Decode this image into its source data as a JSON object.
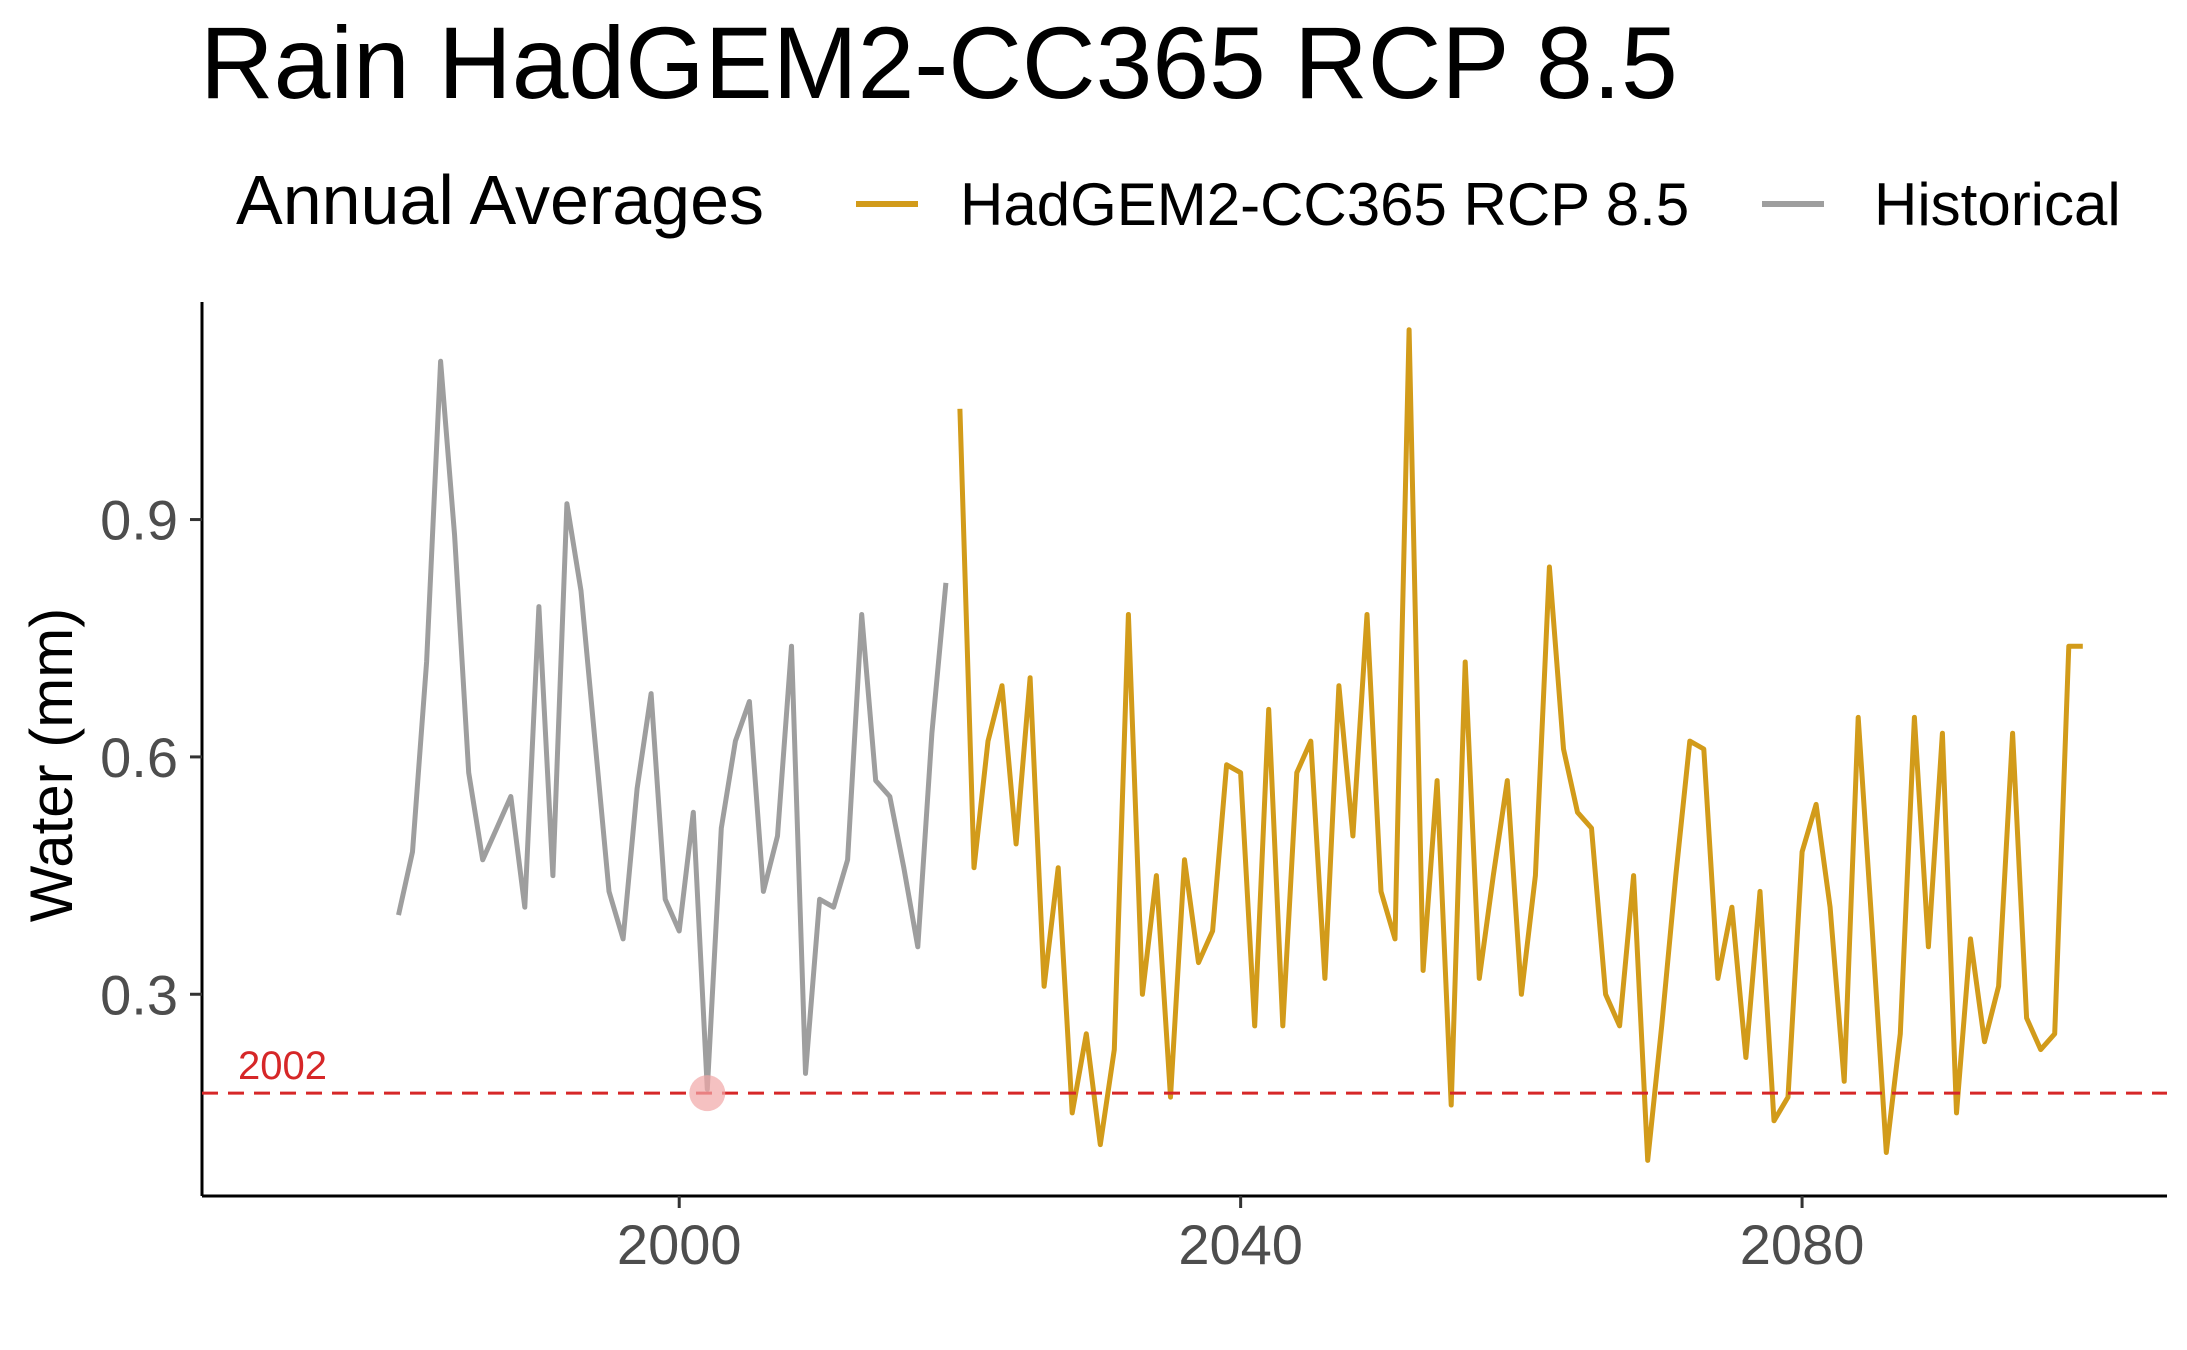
{
  "chart_data": {
    "type": "line",
    "title": "Rain HadGEM2-CC365 RCP 8.5",
    "xlabel": "",
    "ylabel": "Water (mm)",
    "xlim": [
      1966,
      2106
    ],
    "ylim": [
      0.045,
      1.175
    ],
    "x_ticks": [
      2000,
      2040,
      2080
    ],
    "y_ticks": [
      0.3,
      0.6,
      0.9
    ],
    "y_tick_labels": [
      "0.3",
      "0.6",
      "0.9"
    ],
    "grid": false,
    "legend": {
      "title": "Annual Averages",
      "position": "top",
      "entries": [
        "HadGEM2-CC365 RCP 8.5",
        "Historical"
      ]
    },
    "series": [
      {
        "name": "Historical",
        "color": "#9e9e9e",
        "x": [
          1980,
          1981,
          1982,
          1983,
          1984,
          1985,
          1986,
          1987,
          1988,
          1989,
          1990,
          1991,
          1992,
          1993,
          1994,
          1995,
          1996,
          1997,
          1998,
          1999,
          2000,
          2001,
          2002,
          2003,
          2004,
          2005,
          2006,
          2007,
          2008,
          2009,
          2010,
          2011,
          2012,
          2013,
          2014,
          2015,
          2016,
          2017,
          2018,
          2019
        ],
        "y": [
          0.4,
          0.48,
          0.72,
          1.1,
          0.88,
          0.58,
          0.47,
          0.51,
          0.55,
          0.41,
          0.79,
          0.45,
          0.92,
          0.81,
          0.62,
          0.43,
          0.37,
          0.56,
          0.68,
          0.42,
          0.38,
          0.53,
          0.18,
          0.51,
          0.62,
          0.67,
          0.43,
          0.5,
          0.74,
          0.2,
          0.42,
          0.41,
          0.47,
          0.78,
          0.57,
          0.55,
          0.46,
          0.36,
          0.63,
          0.82
        ]
      },
      {
        "name": "HadGEM2-CC365 RCP 8.5",
        "color": "#d29b1a",
        "x": [
          2020,
          2021,
          2022,
          2023,
          2024,
          2025,
          2026,
          2027,
          2028,
          2029,
          2030,
          2031,
          2032,
          2033,
          2034,
          2035,
          2036,
          2037,
          2038,
          2039,
          2040,
          2041,
          2042,
          2043,
          2044,
          2045,
          2046,
          2047,
          2048,
          2049,
          2050,
          2051,
          2052,
          2053,
          2054,
          2055,
          2056,
          2057,
          2058,
          2059,
          2060,
          2061,
          2062,
          2063,
          2064,
          2065,
          2066,
          2067,
          2068,
          2069,
          2070,
          2071,
          2072,
          2073,
          2074,
          2075,
          2076,
          2077,
          2078,
          2079,
          2080,
          2081,
          2082,
          2083,
          2084,
          2085,
          2086,
          2087,
          2088,
          2089,
          2090,
          2091,
          2092,
          2093,
          2094,
          2095,
          2096,
          2097,
          2098,
          2099,
          2100
        ],
        "y": [
          1.04,
          0.46,
          0.62,
          0.69,
          0.49,
          0.7,
          0.31,
          0.46,
          0.15,
          0.25,
          0.11,
          0.23,
          0.78,
          0.3,
          0.45,
          0.17,
          0.47,
          0.34,
          0.38,
          0.59,
          0.58,
          0.26,
          0.66,
          0.26,
          0.58,
          0.62,
          0.32,
          0.69,
          0.5,
          0.78,
          0.43,
          0.37,
          1.14,
          0.33,
          0.57,
          0.16,
          0.72,
          0.32,
          0.45,
          0.57,
          0.3,
          0.45,
          0.84,
          0.61,
          0.53,
          0.51,
          0.3,
          0.26,
          0.45,
          0.09,
          0.26,
          0.45,
          0.62,
          0.61,
          0.32,
          0.41,
          0.22,
          0.43,
          0.14,
          0.17,
          0.48,
          0.54,
          0.41,
          0.19,
          0.65,
          0.38,
          0.1,
          0.25,
          0.65,
          0.36,
          0.63,
          0.15,
          0.37,
          0.24,
          0.31,
          0.63,
          0.27,
          0.23,
          0.25,
          0.74,
          0.74
        ]
      }
    ],
    "reference_line": {
      "y": 0.175,
      "color": "#d62728",
      "style": "dashed",
      "label": "2002"
    },
    "highlight_point": {
      "x": 2002,
      "y": 0.175,
      "color": "#f1a7a7"
    }
  }
}
